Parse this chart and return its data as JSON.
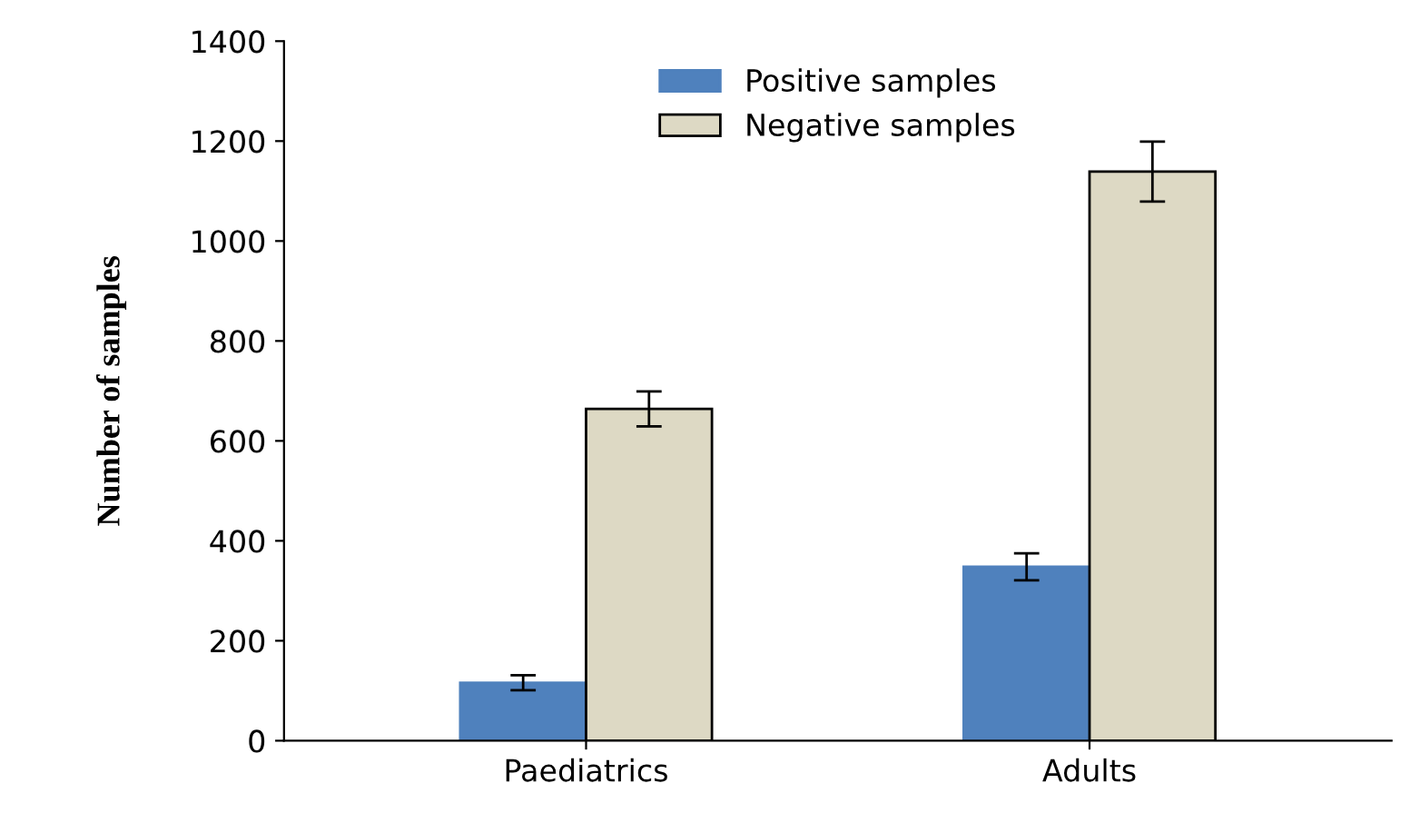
{
  "chart_data": {
    "type": "bar",
    "ylabel": "Number of samples",
    "categories": [
      "Paediatrics",
      "Adults"
    ],
    "series": [
      {
        "name": "Positive samples",
        "color": "#4f81bd",
        "values": [
          116,
          348
        ],
        "errors": [
          15,
          27
        ]
      },
      {
        "name": "Negative samples",
        "color": "#ddd9c4",
        "values": [
          664,
          1139
        ],
        "errors": [
          35,
          60
        ]
      }
    ],
    "ylim": [
      0,
      1400
    ],
    "yticks": [
      0,
      200,
      400,
      600,
      800,
      1000,
      1200,
      1400
    ],
    "grid": false,
    "legend": "top"
  }
}
